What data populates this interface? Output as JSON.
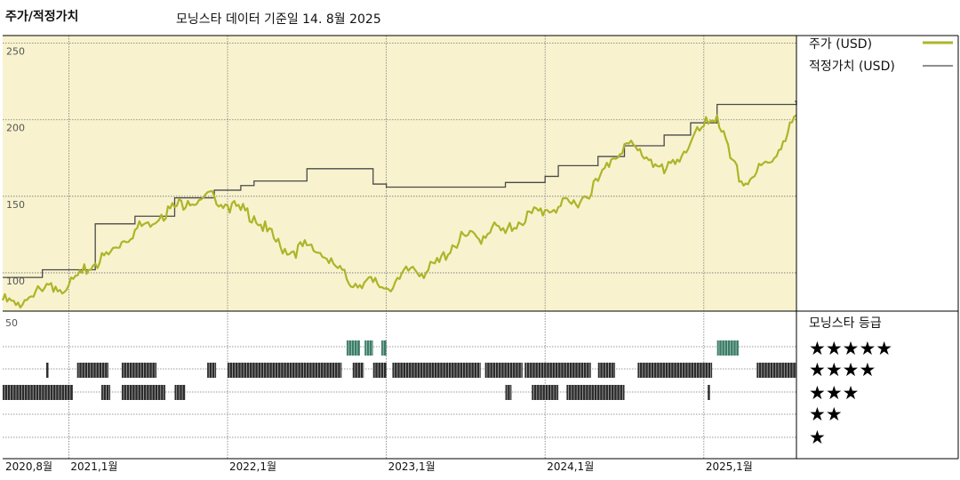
{
  "header": {
    "title": "주가/적정가치",
    "subtitle": "모닝스타 데이터 기준일 14. 8월 2025"
  },
  "colors": {
    "plot_bg": "#f8f3ce",
    "price_line": "#aeb42a",
    "fair_value_line": "#4a4a4a",
    "rating_5_bar": "#3a7d66",
    "rating_bar": "#2b2b2b",
    "grid": "#777777"
  },
  "chart_data": {
    "type": "line",
    "x_range": [
      "2020-08",
      "2025-08"
    ],
    "x_tick_labels": [
      "2020,8월",
      "2021,1월",
      "2022,1월",
      "2023,1월",
      "2024,1월",
      "2025,1월"
    ],
    "y_ticks": [
      100,
      150,
      200,
      250
    ],
    "ylim": [
      75,
      255
    ],
    "grid": true,
    "legend_position": "right",
    "series": [
      {
        "name": "주가 (USD)",
        "x": [
          "2020-08",
          "2020-09",
          "2020-10",
          "2020-11",
          "2020-12",
          "2021-01",
          "2021-02",
          "2021-03",
          "2021-04",
          "2021-05",
          "2021-06",
          "2021-07",
          "2021-08",
          "2021-09",
          "2021-10",
          "2021-11",
          "2021-12",
          "2022-01",
          "2022-02",
          "2022-03",
          "2022-04",
          "2022-05",
          "2022-06",
          "2022-07",
          "2022-08",
          "2022-09",
          "2022-10",
          "2022-11",
          "2022-12",
          "2023-01",
          "2023-02",
          "2023-03",
          "2023-04",
          "2023-05",
          "2023-06",
          "2023-07",
          "2023-08",
          "2023-09",
          "2023-10",
          "2023-11",
          "2023-12",
          "2024-01",
          "2024-02",
          "2024-03",
          "2024-04",
          "2024-05",
          "2024-06",
          "2024-07",
          "2024-08",
          "2024-09",
          "2024-10",
          "2024-11",
          "2024-12",
          "2025-01",
          "2025-02",
          "2025-03",
          "2025-04",
          "2025-05",
          "2025-06",
          "2025-07",
          "2025-08"
        ],
        "values": [
          82,
          79,
          84,
          88,
          91,
          92,
          100,
          106,
          112,
          120,
          128,
          133,
          138,
          143,
          147,
          148,
          150,
          144,
          141,
          137,
          127,
          117,
          114,
          118,
          113,
          106,
          96,
          92,
          94,
          90,
          96,
          104,
          100,
          107,
          118,
          124,
          122,
          130,
          126,
          133,
          139,
          141,
          143,
          145,
          150,
          160,
          174,
          184,
          180,
          174,
          165,
          174,
          185,
          196,
          203,
          175,
          157,
          166,
          172,
          186,
          203
        ]
      },
      {
        "name": "적정가치 (USD)",
        "x": [
          "2020-08",
          "2020-11",
          "2021-01",
          "2021-03",
          "2021-06",
          "2021-09",
          "2021-12",
          "2022-02",
          "2022-03",
          "2022-05",
          "2022-07",
          "2022-09",
          "2022-12",
          "2023-01",
          "2023-04",
          "2023-07",
          "2023-10",
          "2024-01",
          "2024-02",
          "2024-05",
          "2024-07",
          "2024-10",
          "2024-12",
          "2025-02",
          "2025-08"
        ],
        "values": [
          97,
          102,
          102,
          132,
          137,
          149,
          154,
          157,
          160,
          160,
          168,
          168,
          158,
          156,
          156,
          156,
          159,
          163,
          170,
          176,
          183,
          190,
          198,
          210,
          212
        ]
      }
    ],
    "ratings_panel": {
      "title": "모닝스타 등급",
      "levels": [
        "★★★★★",
        "★★★★",
        "★★★",
        "★★",
        "★"
      ],
      "y_tick_label": "50",
      "ranges": {
        "5": [
          [
            "2022-10",
            "2022-11"
          ],
          [
            "2022-11-12",
            "2022-12"
          ],
          [
            "2022-12-20",
            "2023-01"
          ],
          [
            "2025-02",
            "2025-03-20"
          ]
        ],
        "4": [
          [
            "2020-11-10",
            "2020-11-15"
          ],
          [
            "2021-01-20",
            "2021-04"
          ],
          [
            "2021-05",
            "2021-07-20"
          ],
          [
            "2021-11-15",
            "2021-12-05"
          ],
          [
            "2022-01",
            "2022-09-20"
          ],
          [
            "2022-10-15",
            "2022-11-10"
          ],
          [
            "2022-12",
            "2023-01"
          ],
          [
            "2023-01-15",
            "2023-08-05"
          ],
          [
            "2023-08-15",
            "2023-11-10"
          ],
          [
            "2023-11-15",
            "2024-04-15"
          ],
          [
            "2024-05",
            "2024-06-10"
          ],
          [
            "2024-08",
            "2025-01-20"
          ],
          [
            "2025-05",
            "2025-08"
          ]
        ],
        "3": [
          [
            "2020-08",
            "2021-01-10"
          ],
          [
            "2021-03-15",
            "2021-04-05"
          ],
          [
            "2021-05",
            "2021-08-10"
          ],
          [
            "2021-09",
            "2021-09-25"
          ],
          [
            "2023-10",
            "2023-10-15"
          ],
          [
            "2023-12",
            "2024-02"
          ],
          [
            "2024-02-20",
            "2024-07-01"
          ],
          [
            "2025-01-10",
            "2025-01-15"
          ]
        ],
        "2": [],
        "1": []
      }
    }
  }
}
